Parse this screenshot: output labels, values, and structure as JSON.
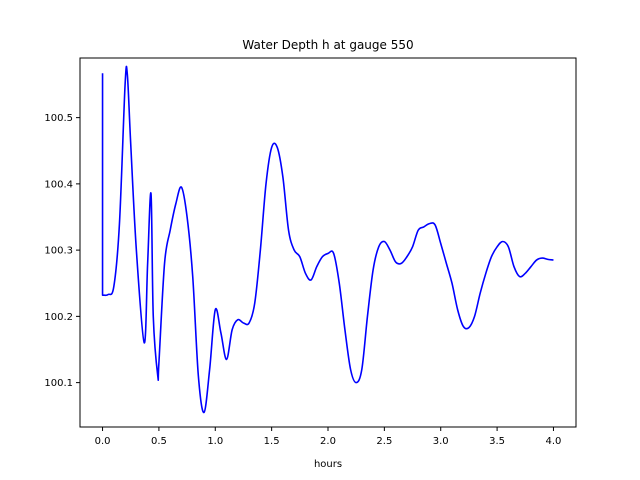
{
  "chart_data": {
    "type": "line",
    "title": "Water Depth h at gauge 550",
    "xlabel": "hours",
    "ylabel": "",
    "xlim": [
      -0.2,
      4.2
    ],
    "ylim": [
      100.033,
      100.59
    ],
    "xticks": [
      0.0,
      0.5,
      1.0,
      1.5,
      2.0,
      2.5,
      3.0,
      3.5,
      4.0
    ],
    "xtick_labels": [
      "0.0",
      "0.5",
      "1.0",
      "1.5",
      "2.0",
      "2.5",
      "3.0",
      "3.5",
      "4.0"
    ],
    "yticks": [
      100.1,
      100.2,
      100.3,
      100.4,
      100.5
    ],
    "ytick_labels": [
      "100.1",
      "100.2",
      "100.3",
      "100.4",
      "100.5"
    ],
    "grid": false,
    "series": [
      {
        "name": "",
        "color": "#0000ff",
        "x": [
          0.0,
          0.0,
          0.0,
          0.05,
          0.1,
          0.15,
          0.2,
          0.22,
          0.25,
          0.3,
          0.37,
          0.4,
          0.43,
          0.45,
          0.49,
          0.5,
          0.55,
          0.6,
          0.65,
          0.7,
          0.75,
          0.8,
          0.85,
          0.9,
          0.95,
          1.0,
          1.05,
          1.1,
          1.15,
          1.2,
          1.25,
          1.3,
          1.35,
          1.4,
          1.45,
          1.5,
          1.55,
          1.6,
          1.65,
          1.7,
          1.75,
          1.8,
          1.85,
          1.9,
          1.95,
          2.0,
          2.05,
          2.1,
          2.15,
          2.2,
          2.25,
          2.3,
          2.35,
          2.4,
          2.45,
          2.5,
          2.55,
          2.6,
          2.65,
          2.7,
          2.75,
          2.8,
          2.85,
          2.9,
          2.95,
          3.0,
          3.05,
          3.1,
          3.15,
          3.2,
          3.25,
          3.3,
          3.35,
          3.4,
          3.45,
          3.5,
          3.55,
          3.6,
          3.65,
          3.7,
          3.75,
          3.8,
          3.85,
          3.9,
          3.95,
          4.0
        ],
        "y": [
          100.567,
          100.232,
          100.232,
          100.233,
          100.245,
          100.34,
          100.55,
          100.565,
          100.46,
          100.3,
          100.16,
          100.28,
          100.385,
          100.2,
          100.11,
          100.13,
          100.28,
          100.33,
          100.37,
          100.395,
          100.35,
          100.26,
          100.11,
          100.055,
          100.12,
          100.21,
          100.175,
          100.135,
          100.18,
          100.195,
          100.19,
          100.19,
          100.22,
          100.3,
          100.4,
          100.455,
          100.455,
          100.41,
          100.33,
          100.3,
          100.29,
          100.265,
          100.255,
          100.275,
          100.29,
          100.295,
          100.295,
          100.25,
          100.18,
          100.12,
          100.1,
          100.12,
          100.2,
          100.27,
          100.305,
          100.313,
          100.3,
          100.282,
          100.28,
          100.29,
          100.305,
          100.33,
          100.335,
          100.34,
          100.338,
          100.31,
          100.28,
          100.25,
          100.21,
          100.185,
          100.183,
          100.2,
          100.235,
          100.265,
          100.29,
          100.305,
          100.313,
          100.305,
          100.275,
          100.26,
          100.265,
          100.275,
          100.285,
          100.288,
          100.286,
          100.285
        ]
      }
    ]
  }
}
